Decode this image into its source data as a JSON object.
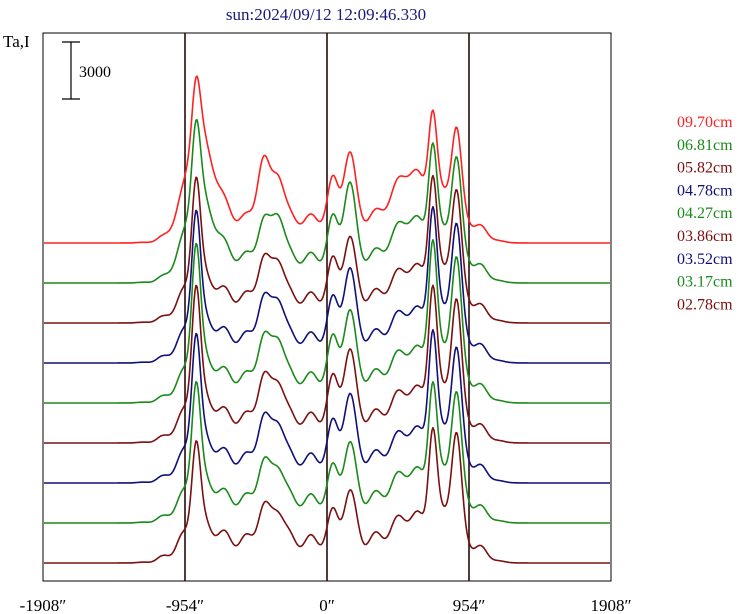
{
  "chart_data": {
    "type": "line",
    "title": "sun:2024/09/12 12:09:46.330",
    "ylabel": "Ta,I",
    "scale_bar_label": "3000",
    "scale_bar_value": 3000,
    "xlim": [
      -1908,
      1908
    ],
    "x_ticks": [
      {
        "value": -1908,
        "label": "-1908″"
      },
      {
        "value": -954,
        "label": "-954″"
      },
      {
        "value": 0,
        "label": "0″"
      },
      {
        "value": 954,
        "label": "954″"
      },
      {
        "value": 1908,
        "label": "1908″"
      }
    ],
    "vertical_lines": [
      -954,
      0,
      954
    ],
    "grid": false,
    "legend_placement": "right",
    "series": [
      {
        "name": "09.70cm",
        "color": "#ff2020",
        "baseline_rank": 8,
        "amplitude": 1.0,
        "profile": {
          "limb": [
            1.1,
            1.3
          ],
          "mid": [
            0.95,
            0.75
          ],
          "center": [
            0.6,
            1.05
          ],
          "core": [
            0.78,
            1.42,
            1.27
          ],
          "ramp": 0.38
        }
      },
      {
        "name": "06.81cm",
        "color": "#1a8a1a",
        "baseline_rank": 7,
        "amplitude": 1.08,
        "profile": {
          "limb": [
            1.25,
            0.9
          ],
          "mid": [
            0.55,
            0.7
          ],
          "center": [
            0.55,
            1.1
          ],
          "core": [
            0.6,
            1.45,
            1.3
          ],
          "ramp": 0.36
        }
      },
      {
        "name": "05.82cm",
        "color": "#7a1010",
        "baseline_rank": 6,
        "amplitude": 1.12,
        "profile": {
          "limb": [
            1.45,
            0.35
          ],
          "mid": [
            0.55,
            0.6
          ],
          "center": [
            0.5,
            0.85
          ],
          "core": [
            0.45,
            1.55,
            1.35
          ],
          "ramp": 0.34
        }
      },
      {
        "name": "04.78cm",
        "color": "#10107a",
        "baseline_rank": 5,
        "amplitude": 1.15,
        "profile": {
          "limb": [
            1.55,
            0.3
          ],
          "mid": [
            0.55,
            0.6
          ],
          "center": [
            0.5,
            0.95
          ],
          "core": [
            0.4,
            1.65,
            1.4
          ],
          "ramp": 0.32
        }
      },
      {
        "name": "04.27cm",
        "color": "#1a8a1a",
        "baseline_rank": 4,
        "amplitude": 1.18,
        "profile": {
          "limb": [
            1.6,
            0.3
          ],
          "mid": [
            0.55,
            0.6
          ],
          "center": [
            0.5,
            0.9
          ],
          "core": [
            0.4,
            1.7,
            1.45
          ],
          "ramp": 0.3
        }
      },
      {
        "name": "03.86cm",
        "color": "#7a1010",
        "baseline_rank": 3,
        "amplitude": 1.2,
        "profile": {
          "limb": [
            1.55,
            0.3
          ],
          "mid": [
            0.55,
            0.55
          ],
          "center": [
            0.5,
            0.9
          ],
          "core": [
            0.4,
            1.6,
            1.4
          ],
          "ramp": 0.28
        }
      },
      {
        "name": "03.52cm",
        "color": "#10107a",
        "baseline_rank": 2,
        "amplitude": 1.2,
        "profile": {
          "limb": [
            1.45,
            0.3
          ],
          "mid": [
            0.55,
            0.55
          ],
          "center": [
            0.45,
            0.85
          ],
          "core": [
            0.4,
            1.55,
            1.3
          ],
          "ramp": 0.26
        }
      },
      {
        "name": "03.17cm",
        "color": "#1a8a1a",
        "baseline_rank": 1,
        "amplitude": 1.2,
        "profile": {
          "limb": [
            1.35,
            0.3
          ],
          "mid": [
            0.5,
            0.5
          ],
          "center": [
            0.4,
            0.75
          ],
          "core": [
            0.4,
            1.4,
            1.25
          ],
          "ramp": 0.24
        }
      },
      {
        "name": "02.78cm",
        "color": "#7a1010",
        "baseline_rank": 0,
        "amplitude": 1.2,
        "profile": {
          "limb": [
            1.15,
            0.25
          ],
          "mid": [
            0.45,
            0.45
          ],
          "center": [
            0.35,
            0.65
          ],
          "core": [
            0.35,
            1.35,
            1.25
          ],
          "ramp": 0.22
        }
      }
    ]
  }
}
